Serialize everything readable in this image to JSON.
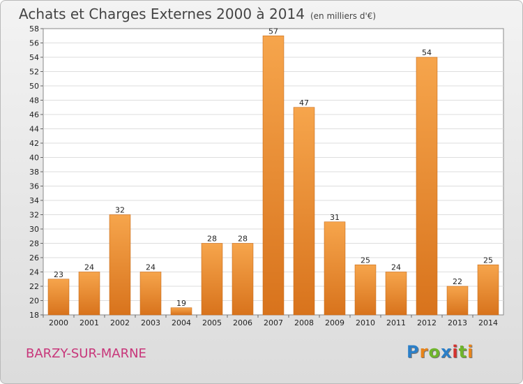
{
  "title": "Achats et Charges Externes 2000 à 2014",
  "subtitle": "(en milliers d'€)",
  "commune": "BARZY-SUR-MARNE",
  "logo": {
    "letters": [
      "P",
      "r",
      "o",
      "x",
      "i",
      "t",
      "i"
    ],
    "colors": [
      "#2b7fc8",
      "#e8841a",
      "#6fb52c",
      "#2b7fc8",
      "#d4322e",
      "#6fb52c",
      "#e8841a"
    ]
  },
  "colors": {
    "bar_top": "#f6a54c",
    "bar_bottom": "#d8731c",
    "bar_edge": "#c86a18"
  },
  "chart_data": {
    "type": "bar",
    "title": "Achats et Charges Externes 2000 à 2014",
    "subtitle": "(en milliers d'€)",
    "categories": [
      "2000",
      "2001",
      "2002",
      "2003",
      "2004",
      "2005",
      "2006",
      "2007",
      "2008",
      "2009",
      "2010",
      "2011",
      "2012",
      "2013",
      "2014"
    ],
    "values": [
      23,
      24,
      32,
      24,
      19,
      28,
      28,
      57,
      47,
      31,
      25,
      24,
      54,
      22,
      25
    ],
    "ylim": [
      18,
      58
    ],
    "yticks": [
      18,
      20,
      22,
      24,
      26,
      28,
      30,
      32,
      34,
      36,
      38,
      40,
      42,
      44,
      46,
      48,
      50,
      52,
      54,
      56,
      58
    ],
    "grid": true,
    "legend": "none"
  }
}
